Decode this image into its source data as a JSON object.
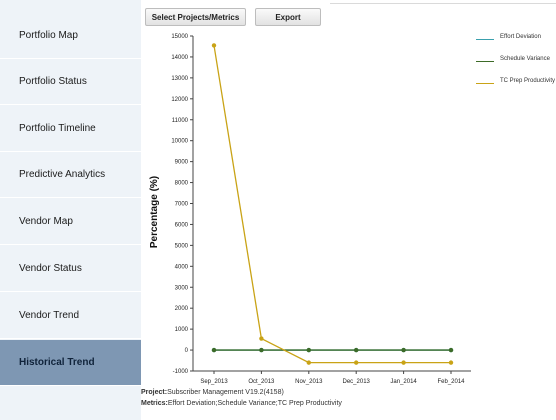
{
  "sidebar": {
    "items": [
      {
        "label": "Portfolio Map",
        "active": false
      },
      {
        "label": "Portfolio Status",
        "active": false
      },
      {
        "label": "Portfolio Timeline",
        "active": false
      },
      {
        "label": "Predictive Analytics",
        "active": false
      },
      {
        "label": "Vendor Map",
        "active": false
      },
      {
        "label": "Vendor Status",
        "active": false
      },
      {
        "label": "Vendor Trend",
        "active": false
      },
      {
        "label": "Historical Trend",
        "active": true
      }
    ]
  },
  "toolbar": {
    "select_label": "Select Projects/Metrics",
    "export_label": "Export"
  },
  "footer": {
    "project_label": "Project:",
    "project_value": "Subscriber Management V19.2(4158)",
    "metrics_label": "Metrics:",
    "metrics_value": "Effort Deviation;Schedule Variance;TC Prep Productivity"
  },
  "chart_data": {
    "type": "line",
    "ylabel": "Percentage (%)",
    "xlabel": "",
    "ylim": [
      -1000,
      15000
    ],
    "yticks": [
      -1000,
      0,
      1000,
      2000,
      3000,
      4000,
      5000,
      6000,
      7000,
      8000,
      9000,
      10000,
      11000,
      12000,
      13000,
      14000,
      15000
    ],
    "categories": [
      "Sep_2013",
      "Oct_2013",
      "Nov_2013",
      "Dec_2013",
      "Jan_2014",
      "Feb_2014"
    ],
    "legend_position": "right",
    "series": [
      {
        "name": "Effort Deviation",
        "color": "#3aa0ad",
        "values": [
          0,
          0,
          0,
          0,
          0,
          0
        ]
      },
      {
        "name": "Schedule Variance",
        "color": "#3d6b28",
        "values": [
          0,
          0,
          0,
          0,
          0,
          0
        ]
      },
      {
        "name": "TC Prep Productivity",
        "color": "#c9a316",
        "values": [
          14550,
          550,
          -600,
          -600,
          -600,
          -600
        ]
      }
    ]
  }
}
